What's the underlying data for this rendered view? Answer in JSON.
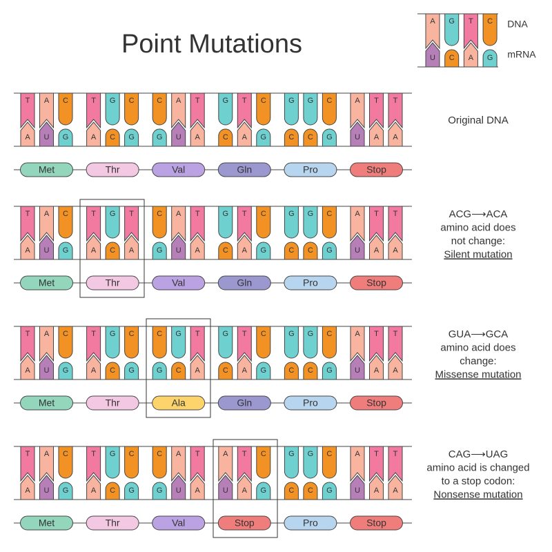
{
  "title": "Point Mutations",
  "legend": {
    "dna": [
      "A",
      "G",
      "T",
      "C"
    ],
    "mrna": [
      "U",
      "C",
      "A",
      "G"
    ],
    "dna_label": "DNA",
    "mrna_label": "mRNA"
  },
  "rows": [
    {
      "dna": [
        "T",
        "A",
        "C",
        "T",
        "G",
        "C",
        "C",
        "A",
        "T",
        "G",
        "T",
        "C",
        "G",
        "G",
        "C",
        "A",
        "T",
        "T"
      ],
      "mrna": [
        "A",
        "U",
        "G",
        "A",
        "C",
        "G",
        "G",
        "U",
        "A",
        "C",
        "A",
        "G",
        "C",
        "C",
        "G",
        "U",
        "A",
        "A"
      ],
      "amino_acids": [
        "Met",
        "Thr",
        "Val",
        "Gln",
        "Pro",
        "Stop"
      ],
      "caption": [
        "Original DNA"
      ]
    },
    {
      "dna": [
        "T",
        "A",
        "C",
        "T",
        "G",
        "T",
        "C",
        "A",
        "T",
        "G",
        "T",
        "C",
        "G",
        "G",
        "C",
        "A",
        "T",
        "T"
      ],
      "mrna": [
        "A",
        "U",
        "G",
        "A",
        "C",
        "A",
        "G",
        "U",
        "A",
        "C",
        "A",
        "G",
        "C",
        "C",
        "G",
        "U",
        "A",
        "A"
      ],
      "amino_acids": [
        "Met",
        "Thr",
        "Val",
        "Gln",
        "Pro",
        "Stop"
      ],
      "caption": [
        "ACG⟶ACA",
        "amino acid does",
        "not change:",
        "Silent mutation"
      ]
    },
    {
      "dna": [
        "T",
        "A",
        "C",
        "T",
        "G",
        "C",
        "C",
        "G",
        "T",
        "G",
        "T",
        "C",
        "G",
        "G",
        "C",
        "A",
        "T",
        "T"
      ],
      "mrna": [
        "A",
        "U",
        "G",
        "A",
        "C",
        "G",
        "G",
        "C",
        "A",
        "C",
        "A",
        "G",
        "C",
        "C",
        "G",
        "U",
        "A",
        "A"
      ],
      "amino_acids": [
        "Met",
        "Thr",
        "Ala",
        "Gln",
        "Pro",
        "Stop"
      ],
      "caption": [
        "GUA⟶GCA",
        "amino acid does",
        "change:",
        "Missense mutation"
      ]
    },
    {
      "dna": [
        "T",
        "A",
        "C",
        "T",
        "G",
        "C",
        "C",
        "A",
        "T",
        "A",
        "T",
        "C",
        "G",
        "G",
        "C",
        "A",
        "T",
        "T"
      ],
      "mrna": [
        "A",
        "U",
        "G",
        "A",
        "C",
        "G",
        "G",
        "U",
        "A",
        "U",
        "A",
        "G",
        "C",
        "C",
        "G",
        "U",
        "A",
        "A"
      ],
      "amino_acids": [
        "Met",
        "Thr",
        "Val",
        "Stop",
        "Pro",
        "Stop"
      ],
      "caption": [
        "CAG⟶UAG",
        "amino acid is changed",
        "to a stop codon:",
        "Nonsense mutation"
      ]
    }
  ]
}
